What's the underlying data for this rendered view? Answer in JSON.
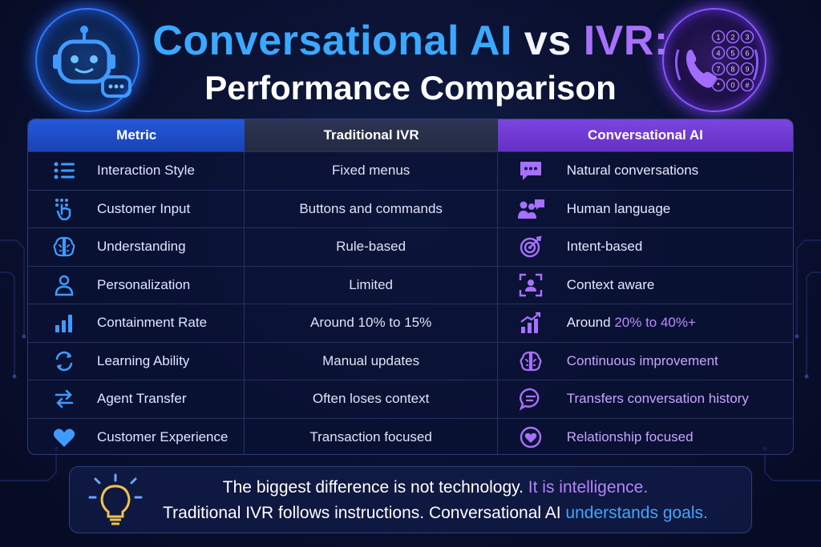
{
  "title": {
    "part1": "Conversational AI",
    "part2": "vs",
    "part3": "IVR:",
    "line2": "Performance Comparison"
  },
  "badges": {
    "left_icon": "robot-chat-icon",
    "right_icon": "phone-keypad-icon",
    "keypad": [
      "1",
      "2",
      "3",
      "4",
      "5",
      "6",
      "7",
      "8",
      "9",
      "*",
      "0",
      "#"
    ]
  },
  "table": {
    "headers": {
      "metric": "Metric",
      "ivr": "Traditional IVR",
      "ai": "Conversational AI"
    },
    "rows": [
      {
        "metric_icon": "list-icon",
        "metric": "Interaction Style",
        "ivr": "Fixed menus",
        "ai_icon": "chat-bubble-icon",
        "ai": "Natural conversations",
        "ai_pre": "",
        "ai_hl": ""
      },
      {
        "metric_icon": "touch-icon",
        "metric": "Customer Input",
        "ivr": "Buttons and commands",
        "ai_icon": "people-chat-icon",
        "ai": "Human language",
        "ai_pre": "",
        "ai_hl": ""
      },
      {
        "metric_icon": "brain-icon",
        "metric": "Understanding",
        "ivr": "Rule-based",
        "ai_icon": "target-icon",
        "ai": "Intent-based",
        "ai_pre": "",
        "ai_hl": ""
      },
      {
        "metric_icon": "person-icon",
        "metric": "Personalization",
        "ivr": "Limited",
        "ai_icon": "face-scan-icon",
        "ai": "Context aware",
        "ai_pre": "",
        "ai_hl": ""
      },
      {
        "metric_icon": "bar-chart-icon",
        "metric": "Containment Rate",
        "ivr": "Around 10% to 15%",
        "ai_icon": "growth-chart-icon",
        "ai": "",
        "ai_pre": "Around",
        "ai_hl": "20% to 40%+"
      },
      {
        "metric_icon": "refresh-icon",
        "metric": "Learning Ability",
        "ivr": "Manual updates",
        "ai_icon": "brain-icon",
        "ai": "Continuous improvement",
        "ai_pre": "",
        "ai_hl": ""
      },
      {
        "metric_icon": "transfer-icon",
        "metric": "Agent Transfer",
        "ivr": "Often loses context",
        "ai_icon": "message-icon",
        "ai": "Transfers conversation history",
        "ai_pre": "",
        "ai_hl": ""
      },
      {
        "metric_icon": "heart-icon",
        "metric": "Customer Experience",
        "ivr": "Transaction focused",
        "ai_icon": "heart-circle-icon",
        "ai": "Relationship focused",
        "ai_pre": "",
        "ai_hl": ""
      }
    ]
  },
  "footer": {
    "icon": "lightbulb-icon",
    "line1_a": "The biggest difference is not technology.",
    "line1_b": "It is intelligence.",
    "line2_a": "Traditional IVR follows instructions. Conversational AI",
    "line2_b": "understands goals."
  },
  "colors": {
    "blue": "#3aa8ff",
    "purple": "#a970ff",
    "background": "#0b1233"
  }
}
